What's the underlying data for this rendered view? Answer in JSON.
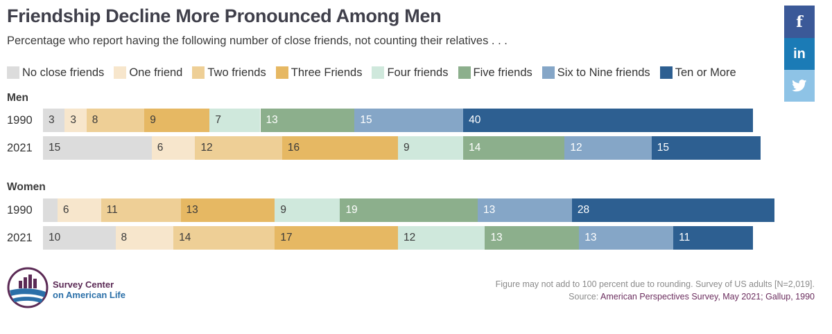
{
  "title": "Friendship Decline More Pronounced Among Men",
  "subtitle": "Percentage who report having the following number of close friends, not counting their relatives . . .",
  "colors": {
    "categories": [
      "#dcdcdc",
      "#f7e6cc",
      "#eecf96",
      "#e6b863",
      "#cfe8dc",
      "#8caf8c",
      "#85a6c7",
      "#2d5f91"
    ],
    "label_dark": "#3a3a3a",
    "label_light": "#ffffff"
  },
  "chart_data": {
    "type": "bar",
    "orientation": "horizontal-stacked",
    "title": "Friendship Decline More Pronounced Among Men",
    "xlabel": "",
    "ylabel": "",
    "xlim": [
      0,
      100
    ],
    "legend_position": "top",
    "categories": [
      "No close friends",
      "One friend",
      "Two friends",
      "Three Friends",
      "Four friends",
      "Five friends",
      "Six to Nine friends",
      "Ten or More"
    ],
    "groups": [
      {
        "name": "Men",
        "rows": [
          {
            "year": "1990",
            "values": [
              3,
              3,
              8,
              9,
              7,
              13,
              15,
              40
            ]
          },
          {
            "year": "2021",
            "values": [
              15,
              6,
              12,
              16,
              9,
              14,
              12,
              15
            ]
          }
        ]
      },
      {
        "name": "Women",
        "rows": [
          {
            "year": "1990",
            "values": [
              2,
              6,
              11,
              13,
              9,
              19,
              13,
              28
            ]
          },
          {
            "year": "2021",
            "values": [
              10,
              8,
              14,
              17,
              12,
              13,
              13,
              11
            ]
          }
        ]
      }
    ],
    "segment_labels": {
      "Men": {
        "1990": [
          "3",
          "3",
          "8",
          "9",
          "7",
          "13",
          "15",
          "40"
        ],
        "2021": [
          "15",
          "6",
          "12",
          "16",
          "9",
          "14",
          "12",
          "15"
        ]
      },
      "Women": {
        "1990": [
          "",
          "6",
          "11",
          "13",
          "9",
          "19",
          "13",
          "28"
        ],
        "2021": [
          "10",
          "8",
          "14",
          "17",
          "12",
          "13",
          "13",
          "11"
        ]
      }
    }
  },
  "share": {
    "facebook": "f",
    "linkedin": "in",
    "twitter": "twitter-bird"
  },
  "logo": {
    "line1": "Survey Center",
    "line2": "on American Life"
  },
  "footnote": "Figure may not add to 100 percent due to rounding. Survey of US adults [N=2,019].",
  "source": {
    "prefix": "Source:",
    "text": "American Perspectives Survey, May 2021; Gallup, 1990"
  }
}
